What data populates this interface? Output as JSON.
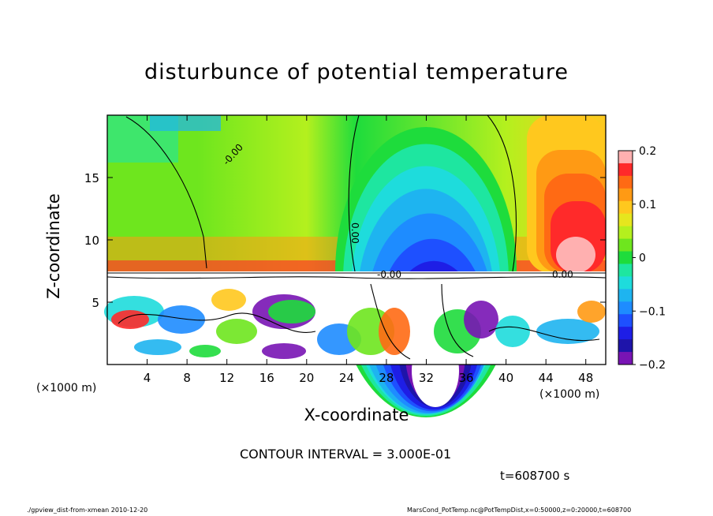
{
  "chart_data": {
    "type": "heatmap",
    "title": "disturbunce of potential temperature",
    "xlabel": "X-coordinate",
    "ylabel": "Z-coordinate",
    "x_unit": "(×1000 m)",
    "xlim": [
      0,
      50
    ],
    "ylim": [
      0,
      20
    ],
    "x_ticks": [
      4,
      8,
      12,
      16,
      20,
      24,
      28,
      32,
      36,
      40,
      44,
      48
    ],
    "y_ticks": [
      5,
      10,
      15
    ],
    "colorbar": {
      "range": [
        -0.2,
        0.2
      ],
      "tick_labels": [
        "0.2",
        "0.1",
        "0",
        "−0.1",
        "−0.2"
      ],
      "tick_values": [
        0.2,
        0.1,
        0,
        -0.1,
        -0.2
      ],
      "colors": [
        "#ffb0b0",
        "#ff2a2a",
        "#ff6a14",
        "#ff9a14",
        "#ffc81e",
        "#e6e61e",
        "#b4f01e",
        "#6ee61e",
        "#1edc3c",
        "#1ee6a0",
        "#1edcdc",
        "#1eb4f0",
        "#1e8cff",
        "#1e50ff",
        "#1e1ee6",
        "#1e14aa",
        "#7814b4"
      ]
    },
    "contour_labels": [
      "-0.00",
      "0.00",
      "-0.00",
      "0.00"
    ],
    "contour_interval": "CONTOUR INTERVAL = 3.000E-01"
  },
  "annotations": {
    "time": "t=608700 s",
    "footer_left": "./gpview_dist-from-xmean  2010-12-20",
    "footer_right": "MarsCond_PotTemp.nc@PotTempDist,x=0:50000,z=0:20000,t=608700"
  }
}
